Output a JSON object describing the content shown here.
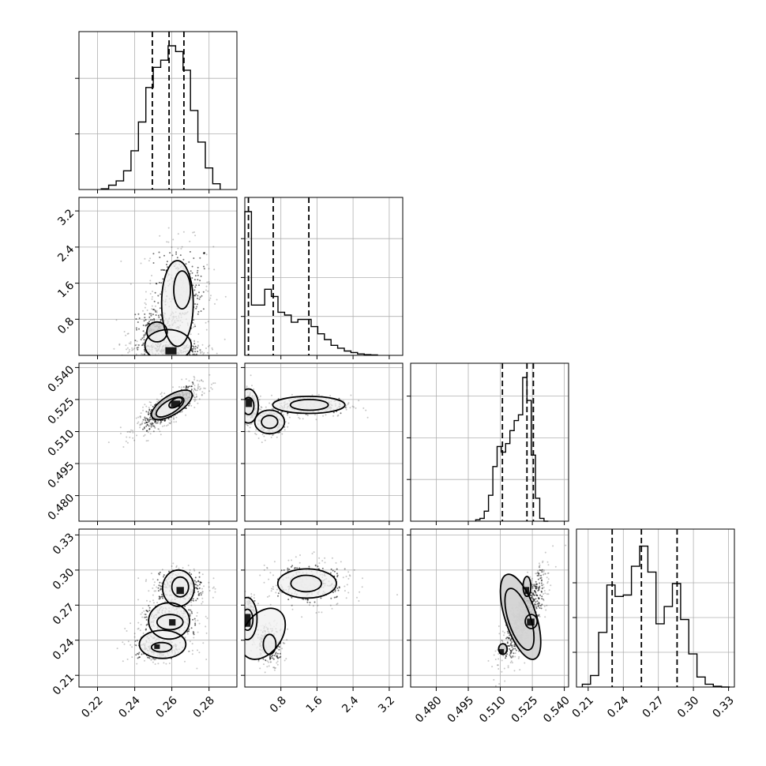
{
  "chart_data": {
    "type": "corner",
    "parameters": [
      {
        "index": 0,
        "range": [
          0.21,
          0.295
        ],
        "ticks": [
          0.22,
          0.24,
          0.26,
          0.28
        ],
        "tick_labels": [
          "0.22",
          "0.24",
          "0.26",
          "0.28"
        ]
      },
      {
        "index": 1,
        "range": [
          0.0,
          3.5
        ],
        "ticks": [
          0.8,
          1.6,
          2.4,
          3.2
        ],
        "tick_labels": [
          "0.8",
          "1.6",
          "2.4",
          "3.2"
        ]
      },
      {
        "index": 2,
        "range": [
          0.468,
          0.542
        ],
        "ticks": [
          0.48,
          0.495,
          0.51,
          0.525,
          0.54
        ],
        "tick_labels": [
          "0.480",
          "0.495",
          "0.510",
          "0.525",
          "0.540"
        ]
      },
      {
        "index": 3,
        "range": [
          0.2,
          0.335
        ],
        "ticks": [
          0.21,
          0.24,
          0.27,
          0.3,
          0.33
        ],
        "tick_labels": [
          "0.21",
          "0.24",
          "0.27",
          "0.30",
          "0.33"
        ]
      }
    ],
    "histograms": [
      {
        "param": 0,
        "quantiles": [
          0.2495,
          0.2585,
          0.2665
        ],
        "bin_edges": [
          0.222,
          0.226,
          0.23,
          0.234,
          0.238,
          0.242,
          0.246,
          0.25,
          0.254,
          0.258,
          0.262,
          0.266,
          0.27,
          0.274,
          0.278,
          0.282,
          0.286
        ],
        "counts": [
          0.005,
          0.03,
          0.06,
          0.13,
          0.27,
          0.47,
          0.71,
          0.85,
          0.9,
          1.0,
          0.96,
          0.83,
          0.55,
          0.33,
          0.15,
          0.04
        ],
        "grid_fractions": [
          0.4,
          0.8
        ]
      },
      {
        "param": 1,
        "quantiles": [
          0.08,
          0.63,
          1.42
        ],
        "bin_edges": [
          0.0,
          0.147,
          0.294,
          0.441,
          0.588,
          0.735,
          0.882,
          1.029,
          1.176,
          1.323,
          1.47,
          1.617,
          1.764,
          1.911,
          2.058,
          2.205,
          2.352,
          2.499,
          2.646,
          2.793,
          2.94
        ],
        "counts": [
          1.0,
          0.35,
          0.35,
          0.46,
          0.41,
          0.3,
          0.28,
          0.23,
          0.25,
          0.25,
          0.2,
          0.15,
          0.11,
          0.07,
          0.05,
          0.03,
          0.02,
          0.01,
          0.005,
          0.003
        ],
        "grid_fractions": [
          0.28,
          0.56,
          0.84
        ]
      },
      {
        "param": 2,
        "quantiles": [
          0.511,
          0.5225,
          0.5255
        ],
        "bin_edges": [
          0.4985,
          0.5005,
          0.5025,
          0.5045,
          0.5065,
          0.5085,
          0.5105,
          0.5125,
          0.5145,
          0.5165,
          0.5185,
          0.5205,
          0.5225,
          0.5245,
          0.5265,
          0.5285,
          0.5305,
          0.5325
        ],
        "counts": [
          0.01,
          0.02,
          0.07,
          0.18,
          0.38,
          0.52,
          0.48,
          0.54,
          0.63,
          0.7,
          0.74,
          1.0,
          0.84,
          0.46,
          0.16,
          0.02,
          0.0
        ],
        "grid_fractions": [
          0.3,
          0.6,
          0.9
        ]
      },
      {
        "param": 3,
        "quantiles": [
          0.2305,
          0.2555,
          0.286
        ],
        "bin_edges": [
          0.205,
          0.212,
          0.219,
          0.226,
          0.233,
          0.24,
          0.247,
          0.254,
          0.261,
          0.268,
          0.275,
          0.282,
          0.289,
          0.296,
          0.303,
          0.31,
          0.317,
          0.324,
          0.331
        ],
        "counts": [
          0.02,
          0.08,
          0.38,
          0.71,
          0.63,
          0.64,
          0.84,
          0.98,
          0.8,
          0.44,
          0.56,
          0.72,
          0.47,
          0.23,
          0.07,
          0.02,
          0.005,
          0.0
        ],
        "grid_fractions": [
          0.25,
          0.5,
          0.75
        ]
      }
    ],
    "scatter_panels": [
      {
        "row": 1,
        "col": 0,
        "x_param": 0,
        "y_param": 1,
        "clusters": [
          {
            "cx": 0.264,
            "cy": 1.45,
            "sx": 0.009,
            "sy": 0.55,
            "n": 320,
            "rho": 0.0
          },
          {
            "cx": 0.253,
            "cy": 0.5,
            "sx": 0.008,
            "sy": 0.28,
            "n": 260,
            "rho": 0.0
          },
          {
            "cx": 0.258,
            "cy": 0.12,
            "sx": 0.01,
            "sy": 0.1,
            "n": 300,
            "rho": 0.0
          }
        ],
        "contours": [
          {
            "cx": 0.2655,
            "cy": 1.45,
            "rx": 0.0045,
            "ry": 0.42
          },
          {
            "cx": 0.263,
            "cy": 1.15,
            "rx": 0.0085,
            "ry": 0.95
          },
          {
            "cx": 0.252,
            "cy": 0.52,
            "rx": 0.0055,
            "ry": 0.22
          },
          {
            "cx": 0.258,
            "cy": 0.22,
            "rx": 0.0125,
            "ry": 0.35
          }
        ],
        "density_blocks": [
          {
            "x": 0.2565,
            "y": 0.02,
            "w": 0.006,
            "h": 0.16
          }
        ]
      },
      {
        "row": 2,
        "col": 0,
        "x_param": 0,
        "y_param": 2,
        "clusters": [
          {
            "cx": 0.258,
            "cy": 0.521,
            "sx": 0.0085,
            "sy": 0.0055,
            "n": 650,
            "rho": 0.8
          }
        ],
        "contours": [
          {
            "cx": 0.26,
            "cy": 0.5225,
            "rx": 0.0125,
            "ry": 0.0045,
            "rot": -32
          },
          {
            "cx": 0.259,
            "cy": 0.5215,
            "rx": 0.0085,
            "ry": 0.003,
            "rot": -32
          },
          {
            "cx": 0.262,
            "cy": 0.5235,
            "rx": 0.004,
            "ry": 0.0018,
            "rot": -32
          }
        ],
        "density_blocks": [
          {
            "x": 0.2595,
            "y": 0.5215,
            "w": 0.005,
            "h": 0.003
          }
        ]
      },
      {
        "row": 2,
        "col": 1,
        "x_param": 1,
        "y_param": 2,
        "clusters": [
          {
            "cx": 1.45,
            "cy": 0.522,
            "sx": 0.45,
            "sy": 0.0025,
            "n": 340,
            "rho": 0.0
          },
          {
            "cx": 0.55,
            "cy": 0.514,
            "sx": 0.16,
            "sy": 0.003,
            "n": 240,
            "rho": 0.0
          },
          {
            "cx": 0.1,
            "cy": 0.522,
            "sx": 0.09,
            "sy": 0.004,
            "n": 260,
            "rho": 0.0
          }
        ],
        "contours": [
          {
            "cx": 1.43,
            "cy": 0.5225,
            "rx": 0.42,
            "ry": 0.0025
          },
          {
            "cx": 1.42,
            "cy": 0.5225,
            "rx": 0.8,
            "ry": 0.004
          },
          {
            "cx": 0.55,
            "cy": 0.5145,
            "rx": 0.18,
            "ry": 0.003
          },
          {
            "cx": 0.55,
            "cy": 0.5145,
            "rx": 0.33,
            "ry": 0.0055
          },
          {
            "cx": 0.08,
            "cy": 0.522,
            "rx": 0.12,
            "ry": 0.004
          },
          {
            "cx": 0.08,
            "cy": 0.522,
            "rx": 0.22,
            "ry": 0.008
          }
        ],
        "density_blocks": [
          {
            "x": 0.02,
            "y": 0.5215,
            "w": 0.14,
            "h": 0.004
          }
        ]
      },
      {
        "row": 3,
        "col": 0,
        "x_param": 0,
        "y_param": 3,
        "clusters": [
          {
            "cx": 0.264,
            "cy": 0.286,
            "sx": 0.0075,
            "sy": 0.008,
            "n": 300,
            "rho": 0.0
          },
          {
            "cx": 0.259,
            "cy": 0.257,
            "sx": 0.0085,
            "sy": 0.008,
            "n": 320,
            "rho": 0.0
          },
          {
            "cx": 0.253,
            "cy": 0.234,
            "sx": 0.008,
            "sy": 0.006,
            "n": 280,
            "rho": 0.0
          }
        ],
        "contours": [
          {
            "cx": 0.2645,
            "cy": 0.2855,
            "rx": 0.0045,
            "ry": 0.0085
          },
          {
            "cx": 0.2635,
            "cy": 0.2845,
            "rx": 0.0085,
            "ry": 0.0155
          },
          {
            "cx": 0.259,
            "cy": 0.2555,
            "rx": 0.007,
            "ry": 0.0065
          },
          {
            "cx": 0.2585,
            "cy": 0.2565,
            "rx": 0.011,
            "ry": 0.0155
          },
          {
            "cx": 0.2545,
            "cy": 0.234,
            "rx": 0.0055,
            "ry": 0.004
          },
          {
            "cx": 0.255,
            "cy": 0.2365,
            "rx": 0.0125,
            "ry": 0.012
          }
        ],
        "density_blocks": [
          {
            "x": 0.2585,
            "y": 0.2525,
            "w": 0.0035,
            "h": 0.0055
          },
          {
            "x": 0.2625,
            "y": 0.2795,
            "w": 0.004,
            "h": 0.006
          },
          {
            "x": 0.2505,
            "y": 0.2325,
            "w": 0.003,
            "h": 0.004
          }
        ]
      },
      {
        "row": 3,
        "col": 1,
        "x_param": 1,
        "y_param": 3,
        "clusters": [
          {
            "cx": 1.45,
            "cy": 0.288,
            "sx": 0.45,
            "sy": 0.01,
            "n": 320,
            "rho": 0.0
          },
          {
            "cx": 0.55,
            "cy": 0.237,
            "sx": 0.16,
            "sy": 0.009,
            "n": 240,
            "rho": 0.0
          },
          {
            "cx": 0.08,
            "cy": 0.258,
            "sx": 0.09,
            "sy": 0.01,
            "n": 260,
            "rho": 0.0
          }
        ],
        "contours": [
          {
            "cx": 1.36,
            "cy": 0.2885,
            "rx": 0.34,
            "ry": 0.007
          },
          {
            "cx": 1.38,
            "cy": 0.2885,
            "rx": 0.65,
            "ry": 0.0125
          },
          {
            "cx": 0.55,
            "cy": 0.2365,
            "rx": 0.14,
            "ry": 0.0085
          },
          {
            "cx": 0.4,
            "cy": 0.2455,
            "rx": 0.42,
            "ry": 0.024,
            "rot": 35
          },
          {
            "cx": 0.06,
            "cy": 0.2575,
            "rx": 0.12,
            "ry": 0.009
          },
          {
            "cx": 0.05,
            "cy": 0.2585,
            "rx": 0.22,
            "ry": 0.018
          }
        ],
        "density_blocks": [
          {
            "x": 0.0,
            "y": 0.2515,
            "w": 0.13,
            "h": 0.011
          }
        ]
      },
      {
        "row": 3,
        "col": 2,
        "x_param": 2,
        "y_param": 3,
        "clusters": [
          {
            "cx": 0.521,
            "cy": 0.26,
            "sx": 0.0055,
            "sy": 0.02,
            "n": 700,
            "rho": 0.8
          }
        ],
        "contours": [
          {
            "cx": 0.5225,
            "cy": 0.286,
            "rx": 0.0018,
            "ry": 0.0085
          },
          {
            "cx": 0.5245,
            "cy": 0.256,
            "rx": 0.0028,
            "ry": 0.006
          },
          {
            "cx": 0.5112,
            "cy": 0.2325,
            "rx": 0.002,
            "ry": 0.0045
          },
          {
            "cx": 0.519,
            "cy": 0.258,
            "rx": 0.0052,
            "ry": 0.0275,
            "rot": -18
          },
          {
            "cx": 0.5195,
            "cy": 0.26,
            "rx": 0.0073,
            "ry": 0.038,
            "rot": -18
          }
        ],
        "density_blocks": [
          {
            "x": 0.5225,
            "y": 0.2525,
            "w": 0.0035,
            "h": 0.006
          },
          {
            "x": 0.5095,
            "y": 0.2285,
            "w": 0.0022,
            "h": 0.004
          },
          {
            "x": 0.5215,
            "y": 0.2795,
            "w": 0.002,
            "h": 0.006
          }
        ]
      }
    ]
  }
}
